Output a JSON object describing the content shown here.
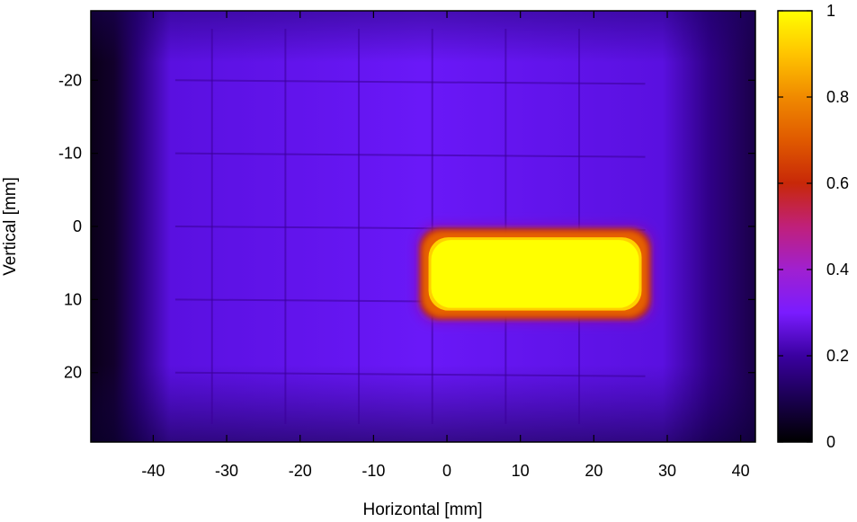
{
  "chart_data": {
    "type": "heatmap",
    "title": "",
    "xlabel": "Horizontal [mm]",
    "ylabel": "Vertical [mm]",
    "xlim": [
      -48.5,
      42
    ],
    "ylim": [
      -29.5,
      29.5
    ],
    "y_axis_inverted": true,
    "xticks": [
      -40,
      -30,
      -20,
      -10,
      0,
      10,
      20,
      30,
      40
    ],
    "yticks": [
      -20,
      -10,
      0,
      10,
      20
    ],
    "colorbar": {
      "range": [
        0,
        1
      ],
      "ticks": [
        0,
        0.2,
        0.4,
        0.6,
        0.8,
        1
      ],
      "tick_labels": [
        "0",
        "0.2",
        "0.4",
        "0.6",
        "0.8",
        "1"
      ],
      "palette": [
        "#000000",
        "#3a0090",
        "#7a1cff",
        "#a020d0",
        "#c82808",
        "#e66a00",
        "#ff9a00",
        "#ffff00"
      ]
    },
    "background_level": 0.18,
    "hotspot": {
      "x_range": [
        -3,
        27
      ],
      "y_range": [
        1,
        12
      ],
      "peak_value": 1.0
    },
    "grid": false
  }
}
